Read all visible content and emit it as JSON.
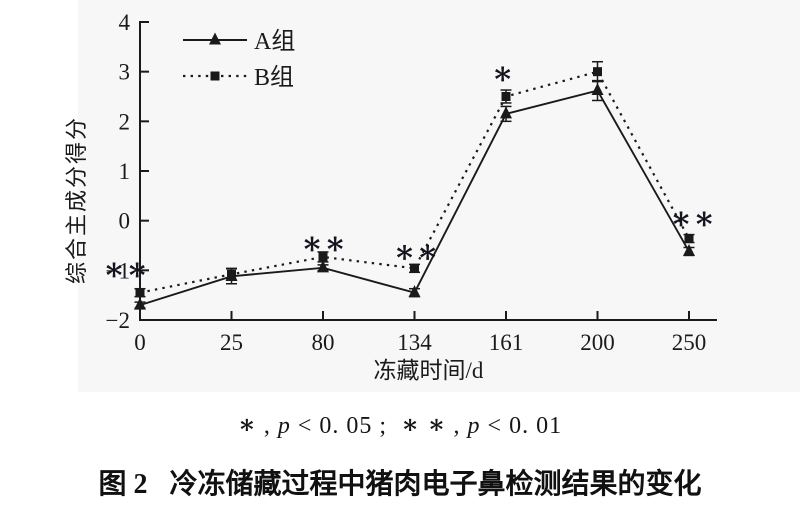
{
  "page": {
    "background": "#ffffff"
  },
  "chart_data": {
    "type": "line",
    "plot_bg": "#f7f7f7",
    "line_color": "#1a1a1a",
    "annotation_color": "#14141e",
    "categories": [
      "0",
      "25",
      "80",
      "134",
      "161",
      "200",
      "250"
    ],
    "xlabel": "冻藏时间/d",
    "ylabel": "综合主成分得分",
    "ylim": [
      -2,
      4
    ],
    "yticks": [
      {
        "v": 4,
        "label": "4"
      },
      {
        "v": 3,
        "label": "3"
      },
      {
        "v": 2,
        "label": "2"
      },
      {
        "v": 1,
        "label": "1"
      },
      {
        "v": 0,
        "label": "0"
      },
      {
        "v": -1,
        "label": "−1"
      },
      {
        "v": -2,
        "label": "−2"
      }
    ],
    "series": [
      {
        "name": "A组",
        "marker": "triangle",
        "line": "solid",
        "values": [
          -1.7,
          -1.12,
          -0.95,
          -1.45,
          2.15,
          2.62,
          -0.62
        ],
        "errors": [
          0.06,
          0.15,
          0.06,
          0.08,
          0.15,
          0.2,
          0.08
        ]
      },
      {
        "name": "B组",
        "marker": "square",
        "line": "dotted",
        "values": [
          -1.45,
          -1.08,
          -0.73,
          -0.96,
          2.5,
          3.0,
          -0.36
        ],
        "errors": [
          0.08,
          0.12,
          0.1,
          0.08,
          0.13,
          0.2,
          0.08
        ]
      }
    ],
    "annotations": [
      {
        "x_index": 0,
        "y": -0.97,
        "dx": -14,
        "label": "∗∗"
      },
      {
        "x_index": 2,
        "y": -0.45,
        "dx": 1,
        "label": "∗∗"
      },
      {
        "x_index": 3,
        "y": -0.62,
        "dx": 2,
        "label": "∗∗"
      },
      {
        "x_index": 4,
        "y": 2.97,
        "dx": -3,
        "label": "∗"
      },
      {
        "x_index": 6,
        "y": 0.05,
        "dx": 4,
        "label": "∗∗"
      }
    ],
    "legend_position": "top-left",
    "grid": false
  },
  "caption": {
    "star1": "∗",
    "sep1": " , ",
    "p1": "p",
    "rel1": " < 0. 05 ;  ",
    "star2": "∗ ∗",
    "sep2": " , ",
    "p2": "p",
    "rel2": " < 0. 01"
  },
  "figure_title": {
    "prefix": "图 2",
    "text": "冷冻储藏过程中猪肉电子鼻检测结果的变化"
  }
}
